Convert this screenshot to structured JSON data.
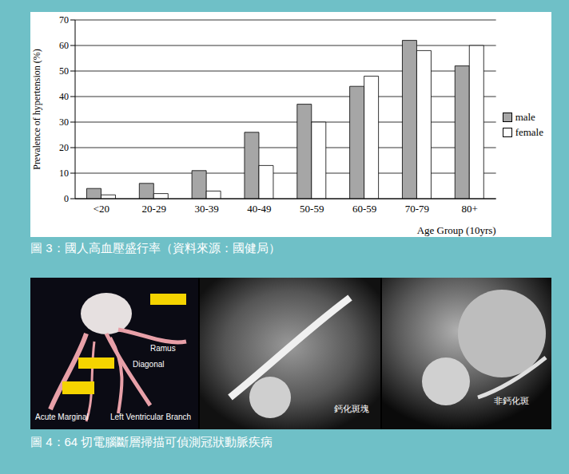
{
  "chart_data": {
    "type": "bar",
    "categories": [
      "<20",
      "20-29",
      "30-39",
      "40-49",
      "50-59",
      "60-59",
      "70-79",
      "80+"
    ],
    "series": [
      {
        "name": "male",
        "color": "#a6a6a6",
        "values": [
          4,
          6,
          11,
          26,
          37,
          44,
          62,
          52
        ]
      },
      {
        "name": "female",
        "color": "#ffffff",
        "values": [
          1.5,
          2,
          3,
          13,
          30,
          48,
          58,
          60
        ]
      }
    ],
    "y_label": "Prevalence of hypertension (%)",
    "x_label": "Age Group (10yrs)",
    "ylim": [
      0,
      70
    ],
    "yticks": [
      0,
      10,
      20,
      30,
      40,
      50,
      60,
      70
    ],
    "grid": true,
    "legend": "right"
  },
  "figure3_caption": "圖 3：國人高血壓盛行率（資料來源：國健局）",
  "figure4": {
    "caption": "圖 4：64 切電腦斷層掃描可偵測冠狀動脈疾病",
    "panels": [
      {
        "labels": [
          "Ramus",
          "Diagonal",
          "Left Ventricular Branch",
          "Acute Marginal"
        ]
      },
      {
        "labels": [
          "鈣化斑塊"
        ]
      },
      {
        "labels": [
          "非鈣化斑"
        ]
      }
    ]
  }
}
